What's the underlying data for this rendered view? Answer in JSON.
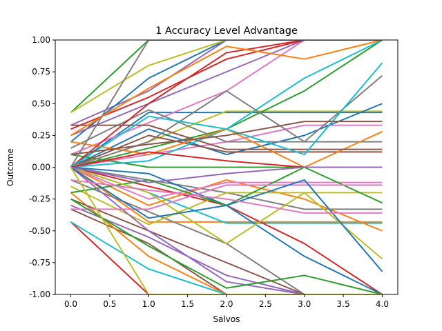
{
  "chart_data": {
    "type": "line",
    "title": "1 Accuracy Level Advantage",
    "xlabel": "Salvos",
    "ylabel": "Outcome",
    "xlim": [
      -0.2,
      4.2
    ],
    "ylim": [
      -1.0,
      1.0
    ],
    "x": [
      0,
      1,
      2,
      3,
      4
    ],
    "x_ticks": [
      "0.0",
      "0.5",
      "1.0",
      "1.5",
      "2.0",
      "2.5",
      "3.0",
      "3.5",
      "4.0"
    ],
    "y_ticks": [
      "-1.00",
      "-0.75",
      "-0.50",
      "-0.25",
      "0.00",
      "0.25",
      "0.50",
      "0.75",
      "1.00"
    ],
    "grid": false,
    "legend": "none",
    "colors": [
      "#1f77b4",
      "#ff7f0e",
      "#2ca02c",
      "#d62728",
      "#9467bd",
      "#8c564b",
      "#e377c2",
      "#7f7f7f",
      "#bcbd22",
      "#17becf"
    ],
    "series": [
      {
        "values": [
          0.0,
          0.43,
          0.43,
          0.43,
          0.43
        ]
      },
      {
        "values": [
          0.0,
          -0.43,
          -0.43,
          -0.43,
          -0.43
        ]
      },
      {
        "values": [
          0.43,
          1.0,
          1.0,
          1.0,
          1.0
        ]
      },
      {
        "values": [
          -0.43,
          -1.0,
          -1.0,
          -1.0,
          -1.0
        ]
      },
      {
        "values": [
          0.33,
          0.6,
          1.0,
          1.0,
          1.0
        ]
      },
      {
        "values": [
          -0.33,
          -0.6,
          -1.0,
          -1.0,
          -1.0
        ]
      },
      {
        "values": [
          0.1,
          0.35,
          0.6,
          1.0,
          1.0
        ]
      },
      {
        "values": [
          -0.1,
          -0.35,
          -0.6,
          -1.0,
          -1.0
        ]
      },
      {
        "values": [
          0.0,
          0.2,
          0.44,
          0.44,
          0.44
        ]
      },
      {
        "values": [
          0.0,
          -0.2,
          -0.44,
          -0.44,
          -0.44
        ]
      },
      {
        "values": [
          0.2,
          0.7,
          1.0,
          1.0,
          1.0
        ]
      },
      {
        "values": [
          -0.2,
          -0.7,
          -1.0,
          -1.0,
          -1.0
        ]
      },
      {
        "values": [
          0.0,
          0.15,
          0.3,
          0.6,
          1.0
        ]
      },
      {
        "values": [
          0.0,
          -0.15,
          -0.3,
          -0.6,
          -1.0
        ]
      },
      {
        "values": [
          0.25,
          0.5,
          0.75,
          1.0,
          1.0
        ]
      },
      {
        "values": [
          -0.25,
          -0.5,
          -0.75,
          -1.0,
          -1.0
        ]
      },
      {
        "values": [
          0.0,
          0.1,
          0.2,
          0.33,
          0.33
        ]
      },
      {
        "values": [
          0.0,
          -0.1,
          -0.2,
          -0.33,
          -0.33
        ]
      },
      {
        "values": [
          0.43,
          0.8,
          1.0,
          1.0,
          1.0
        ]
      },
      {
        "values": [
          -0.43,
          -0.8,
          -1.0,
          -1.0,
          -1.0
        ]
      },
      {
        "values": [
          0.0,
          0.3,
          0.1,
          0.25,
          0.5
        ]
      },
      {
        "values": [
          0.0,
          -0.3,
          -0.1,
          -0.25,
          -0.5
        ]
      },
      {
        "values": [
          0.1,
          0.0,
          0.0,
          0.0,
          0.0
        ]
      },
      {
        "values": [
          0.3,
          0.55,
          0.85,
          1.0,
          1.0
        ]
      },
      {
        "values": [
          -0.3,
          -0.55,
          -0.85,
          -1.0,
          -1.0
        ]
      },
      {
        "values": [
          0.0,
          0.25,
          0.12,
          0.12,
          0.12
        ]
      },
      {
        "values": [
          0.0,
          -0.25,
          -0.12,
          -0.12,
          -0.12
        ]
      },
      {
        "values": [
          0.15,
          0.45,
          0.2,
          0.2,
          0.2
        ]
      },
      {
        "values": [
          -0.15,
          -0.45,
          -0.2,
          -0.2,
          -0.2
        ]
      },
      {
        "values": [
          0.0,
          0.05,
          0.3,
          0.7,
          1.0
        ]
      },
      {
        "values": [
          0.0,
          -0.05,
          -0.3,
          -0.7,
          -1.0
        ]
      },
      {
        "values": [
          0.2,
          0.1,
          0.3,
          0.0,
          0.28
        ]
      },
      {
        "values": [
          -0.2,
          -0.1,
          -0.3,
          0.0,
          -0.28
        ]
      },
      {
        "values": [
          0.0,
          0.5,
          0.9,
          1.0,
          1.0
        ]
      },
      {
        "values": [
          0.0,
          -0.5,
          -0.9,
          -1.0,
          -1.0
        ]
      },
      {
        "values": [
          0.33,
          0.33,
          0.14,
          0.14,
          0.14
        ]
      },
      {
        "values": [
          -0.33,
          -0.33,
          -0.14,
          -0.14,
          -0.14
        ]
      },
      {
        "values": [
          0.0,
          0.2,
          0.6,
          0.2,
          0.72
        ]
      },
      {
        "values": [
          0.0,
          -0.2,
          -0.6,
          -0.2,
          -0.72
        ]
      },
      {
        "values": [
          0.0,
          0.4,
          0.3,
          0.1,
          0.82
        ]
      },
      {
        "values": [
          0.0,
          -0.4,
          -0.3,
          -0.1,
          -0.82
        ]
      },
      {
        "values": [
          0.25,
          0.62,
          0.95,
          0.85,
          1.0
        ]
      },
      {
        "values": [
          -0.25,
          -0.62,
          -0.95,
          -0.85,
          -1.0
        ]
      },
      {
        "values": [
          0.0,
          0.12,
          0.05,
          0.0,
          0.0
        ]
      },
      {
        "values": [
          0.0,
          -0.12,
          -0.05,
          0.0,
          0.0
        ]
      },
      {
        "values": [
          0.1,
          0.18,
          0.25,
          0.36,
          0.36
        ]
      },
      {
        "values": [
          -0.1,
          -0.18,
          -0.25,
          -0.36,
          -0.36
        ]
      },
      {
        "values": [
          0.0,
          1.0,
          1.0,
          1.0,
          1.0
        ]
      },
      {
        "values": [
          0.0,
          -1.0,
          -1.0,
          -1.0,
          -1.0
        ]
      }
    ]
  }
}
